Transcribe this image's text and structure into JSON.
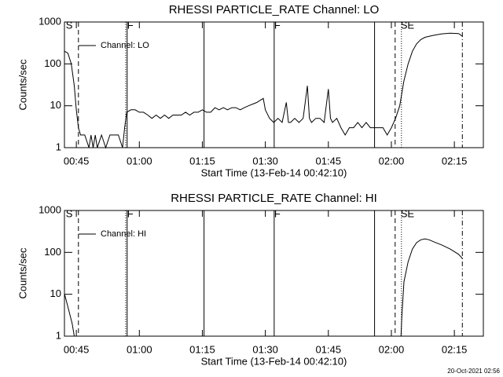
{
  "timestamp": "20-Oct-2021 02:56",
  "chart_data": [
    {
      "type": "line",
      "title": "RHESSI PARTICLE_RATE Channel: LO",
      "xlabel": "Start Time (13-Feb-14 00:42:10)",
      "ylabel": "Counts/sec",
      "log_y": true,
      "legend": "upper left",
      "xlim": [
        42.17,
        141.9
      ],
      "ylim": [
        1,
        1000
      ],
      "xticks": [
        {
          "value": 45,
          "label": "00:45"
        },
        {
          "value": 60,
          "label": "01:00"
        },
        {
          "value": 75,
          "label": "01:15"
        },
        {
          "value": 90,
          "label": "01:30"
        },
        {
          "value": 105,
          "label": "01:45"
        },
        {
          "value": 120,
          "label": "02:00"
        },
        {
          "value": 135,
          "label": "02:15"
        }
      ],
      "yticks": [
        1,
        10,
        100,
        1000
      ],
      "vlines": [
        {
          "x": 45.5,
          "dash": "dashed"
        },
        {
          "x": 56.75,
          "dash": "dotted"
        },
        {
          "x": 57.1,
          "dash": "solid"
        },
        {
          "x": 75.4,
          "dash": "solid"
        },
        {
          "x": 92.1,
          "dash": "solid"
        },
        {
          "x": 116.0,
          "dash": "solid"
        },
        {
          "x": 120.9,
          "dash": "dashed"
        },
        {
          "x": 122.4,
          "dash": "dotted"
        },
        {
          "x": 136.9,
          "dash": "dashdot"
        }
      ],
      "flags": [
        {
          "label": "S",
          "x": 42.5
        },
        {
          "label": "F",
          "x": 57.1
        },
        {
          "label": "F",
          "x": 92.1
        },
        {
          "label": "SE",
          "x": 122.2
        }
      ],
      "x": [
        42.2,
        43.0,
        43.8,
        44.5,
        45.0,
        45.5,
        46,
        47,
        48,
        48.5,
        49,
        49.5,
        50,
        51,
        52,
        53,
        54,
        55,
        56,
        56.5,
        57,
        58,
        59,
        60,
        61,
        62,
        63,
        64,
        65,
        66,
        67,
        68,
        69,
        70,
        71,
        72,
        73,
        74,
        75,
        76,
        77,
        78,
        79,
        80,
        81,
        82,
        83,
        84,
        85,
        86,
        87,
        88,
        89,
        89.5,
        90,
        91,
        92,
        93,
        94,
        95,
        95.5,
        96,
        97,
        98,
        99,
        100,
        100.5,
        101,
        102,
        103,
        104,
        105,
        105.5,
        106,
        107,
        108,
        109,
        110,
        111,
        112,
        113,
        114,
        115,
        116,
        117,
        118,
        119,
        120,
        121,
        122,
        123,
        124,
        125,
        126,
        127,
        128,
        130,
        132,
        134,
        136,
        137
      ],
      "series": [
        {
          "name": "Channel: LO",
          "color": "#000000",
          "values": [
            200,
            180,
            100,
            30,
            8,
            3,
            2,
            2,
            1,
            2,
            1,
            2,
            1,
            2,
            1,
            2,
            2,
            2,
            1,
            3,
            7,
            8,
            8,
            7,
            7,
            6,
            5,
            6,
            5,
            6,
            5,
            6,
            6,
            6,
            7,
            6,
            7,
            7,
            8,
            7,
            7,
            9,
            8,
            9,
            8,
            9,
            9,
            8,
            9,
            10,
            11,
            12,
            14,
            15,
            8,
            5,
            4,
            5,
            4,
            12,
            4,
            4,
            5,
            4,
            5,
            30,
            5,
            4,
            5,
            5,
            4,
            25,
            5,
            4,
            5,
            3,
            2,
            3,
            3,
            4,
            3,
            4,
            3,
            3,
            3,
            3,
            2,
            3,
            5,
            10,
            40,
            100,
            200,
            300,
            380,
            430,
            480,
            520,
            540,
            530,
            450
          ]
        }
      ]
    },
    {
      "type": "line",
      "title": "RHESSI PARTICLE_RATE Channel: HI",
      "xlabel": "Start Time (13-Feb-14 00:42:10)",
      "ylabel": "Counts/sec",
      "log_y": true,
      "legend": "upper left",
      "xlim": [
        42.17,
        141.9
      ],
      "ylim": [
        1,
        1000
      ],
      "xticks": [
        {
          "value": 45,
          "label": "00:45"
        },
        {
          "value": 60,
          "label": "01:00"
        },
        {
          "value": 75,
          "label": "01:15"
        },
        {
          "value": 90,
          "label": "01:30"
        },
        {
          "value": 105,
          "label": "01:45"
        },
        {
          "value": 120,
          "label": "02:00"
        },
        {
          "value": 135,
          "label": "02:15"
        }
      ],
      "yticks": [
        1,
        10,
        100,
        1000
      ],
      "vlines": [
        {
          "x": 45.5,
          "dash": "dashed"
        },
        {
          "x": 56.75,
          "dash": "dotted"
        },
        {
          "x": 57.1,
          "dash": "solid"
        },
        {
          "x": 75.4,
          "dash": "solid"
        },
        {
          "x": 92.1,
          "dash": "solid"
        },
        {
          "x": 116.0,
          "dash": "solid"
        },
        {
          "x": 120.9,
          "dash": "dashed"
        },
        {
          "x": 122.4,
          "dash": "dotted"
        },
        {
          "x": 136.9,
          "dash": "dashdot"
        }
      ],
      "flags": [
        {
          "label": "S",
          "x": 42.5
        },
        {
          "label": "F",
          "x": 57.1
        },
        {
          "label": "F",
          "x": 92.1
        },
        {
          "label": "SE",
          "x": 122.2
        }
      ],
      "x": [
        42.2,
        43,
        44,
        44.5,
        80,
        122.3,
        122.5,
        123,
        124,
        125,
        126,
        127,
        128,
        129,
        130,
        132,
        134,
        136,
        137
      ],
      "series": [
        {
          "name": "Channel: HI",
          "color": "#000000",
          "values": [
            10,
            5,
            2,
            1,
            null,
            1,
            3,
            20,
            60,
            120,
            170,
            200,
            210,
            200,
            180,
            150,
            120,
            90,
            70
          ]
        }
      ]
    }
  ]
}
